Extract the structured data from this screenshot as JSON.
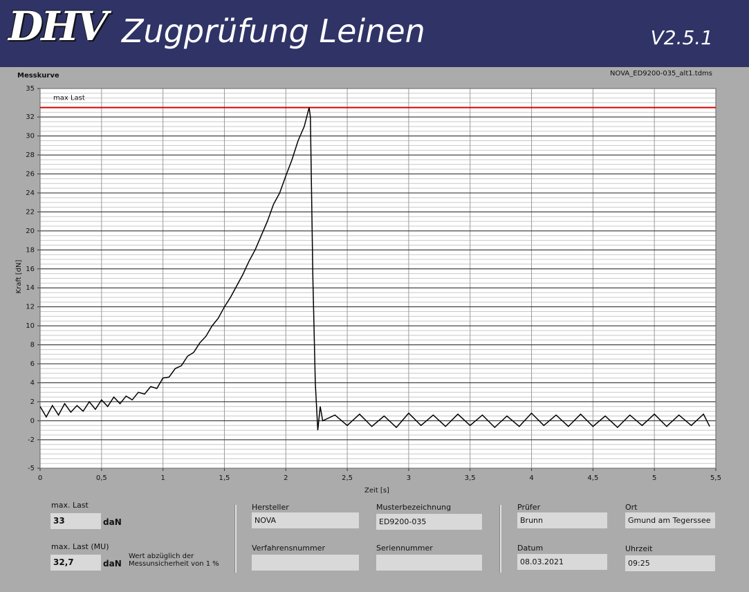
{
  "header": {
    "logo": "DHV",
    "title": "Zugprüfung Leinen",
    "version": "V2.5.1"
  },
  "chart_data": {
    "type": "line",
    "title": "Messkurve",
    "subtitle": "NOVA_ED9200-035_alt1.tdms",
    "x_label": "Zeit [s]",
    "y_label": "Kraft [dN]",
    "xlim": [
      0,
      5.5
    ],
    "ylim": [
      -5,
      35
    ],
    "xticks": [
      0,
      {
        "value": 0.5,
        "label": "0,5"
      },
      1,
      {
        "value": 1.5,
        "label": "1,5"
      },
      2,
      {
        "value": 2.5,
        "label": "2,5"
      },
      3,
      {
        "value": 3.5,
        "label": "3,5"
      },
      4,
      {
        "value": 4.5,
        "label": "4,5"
      },
      5,
      {
        "value": 5.5,
        "label": "5,5"
      }
    ],
    "yticks": [
      35,
      32,
      30,
      28,
      26,
      24,
      22,
      20,
      18,
      16,
      14,
      12,
      10,
      8,
      6,
      4,
      2,
      0,
      -2,
      -5
    ],
    "grid": true,
    "annotations": [
      {
        "text": "max Last",
        "y": 33,
        "color": "#d40000"
      }
    ],
    "x": [
      0,
      0.05,
      0.1,
      0.15,
      0.2,
      0.25,
      0.3,
      0.35,
      0.4,
      0.45,
      0.5,
      0.55,
      0.6,
      0.65,
      0.7,
      0.75,
      0.8,
      0.85,
      0.9,
      0.95,
      1.0,
      1.05,
      1.1,
      1.15,
      1.2,
      1.25,
      1.3,
      1.35,
      1.4,
      1.45,
      1.5,
      1.55,
      1.6,
      1.65,
      1.7,
      1.75,
      1.8,
      1.85,
      1.9,
      1.95,
      2.0,
      2.05,
      2.1,
      2.15,
      2.19,
      2.2,
      2.22,
      2.24,
      2.26,
      2.28,
      2.3,
      2.4,
      2.5,
      2.6,
      2.7,
      2.8,
      2.9,
      3.0,
      3.1,
      3.2,
      3.3,
      3.4,
      3.5,
      3.6,
      3.7,
      3.8,
      3.9,
      4.0,
      4.1,
      4.2,
      4.3,
      4.4,
      4.5,
      4.6,
      4.7,
      4.8,
      4.9,
      5.0,
      5.1,
      5.2,
      5.3,
      5.4,
      5.45
    ],
    "series": [
      {
        "color": "#000000",
        "values": [
          1.5,
          0.4,
          1.6,
          0.6,
          1.8,
          0.9,
          1.6,
          1.0,
          2.0,
          1.2,
          2.2,
          1.5,
          2.5,
          1.8,
          2.6,
          2.2,
          3.0,
          2.8,
          3.6,
          3.4,
          4.5,
          4.6,
          5.5,
          5.8,
          6.8,
          7.2,
          8.2,
          8.9,
          10.0,
          10.8,
          12.0,
          13.0,
          14.2,
          15.4,
          16.8,
          18.0,
          19.5,
          21.0,
          22.8,
          24.0,
          25.8,
          27.5,
          29.5,
          31.0,
          33.0,
          32.0,
          15.0,
          4.0,
          -1.0,
          1.5,
          0.0,
          0.6,
          -0.5,
          0.7,
          -0.6,
          0.5,
          -0.7,
          0.8,
          -0.5,
          0.6,
          -0.6,
          0.7,
          -0.5,
          0.6,
          -0.7,
          0.5,
          -0.6,
          0.8,
          -0.5,
          0.6,
          -0.6,
          0.7,
          -0.6,
          0.5,
          -0.7,
          0.6,
          -0.5,
          0.7,
          -0.6,
          0.6,
          -0.5,
          0.7,
          -0.6
        ]
      }
    ]
  },
  "form": {
    "max_last": {
      "label": "max. Last",
      "value": "33",
      "unit": "daN"
    },
    "max_last_mu": {
      "label": "max. Last (MU)",
      "value": "32,7",
      "unit": "daN",
      "note": "Wert abzüglich der Messunsicherheit von 1 %"
    },
    "hersteller": {
      "label": "Hersteller",
      "value": "NOVA"
    },
    "musterbezeichnung": {
      "label": "Musterbezeichnung",
      "value": "ED9200-035"
    },
    "verfahrensnummer": {
      "label": "Verfahrensnummer"
    },
    "seriennummer": {
      "label": "Seriennummer"
    },
    "pruefer": {
      "label": "Prüfer",
      "value": "Brunn"
    },
    "ort": {
      "label": "Ort",
      "value": "Gmund am Tegerssee"
    },
    "datum": {
      "label": "Datum",
      "value": "08.03.2021"
    },
    "uhrzeit": {
      "label": "Uhrzeit",
      "value": "09:25"
    }
  }
}
